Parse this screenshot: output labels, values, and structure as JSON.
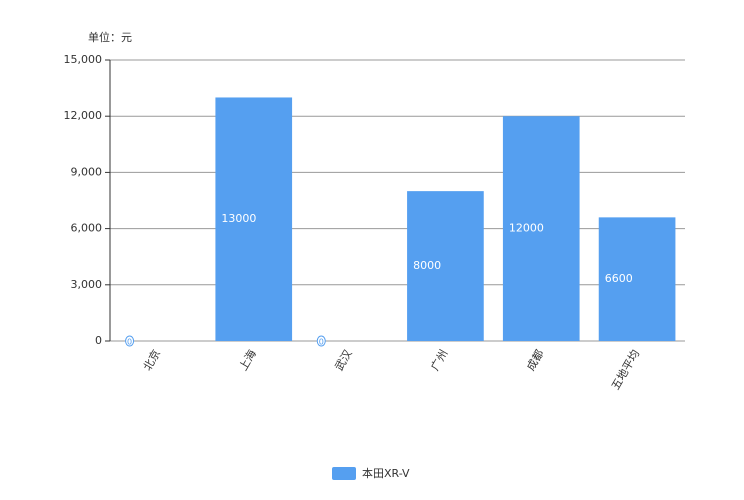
{
  "chart_data": {
    "type": "bar",
    "y_axis_label": "单位：元",
    "categories": [
      "北京",
      "上海",
      "武汉",
      "广州",
      "成都",
      "五地平均"
    ],
    "series": [
      {
        "name": "本田XR-V",
        "color": "#559ff0",
        "values": [
          0,
          13000,
          0,
          8000,
          12000,
          6600
        ]
      }
    ],
    "ylim": [
      0,
      15000
    ],
    "yticks": [
      0,
      {
        "value": 3000,
        "label": "3,000"
      },
      {
        "value": 6000,
        "label": "6,000"
      },
      {
        "value": 9000,
        "label": "9,000"
      },
      {
        "value": 12000,
        "label": "12,000"
      },
      {
        "value": 15000,
        "label": "15,000"
      }
    ],
    "grid": true,
    "legend": "bottom"
  }
}
